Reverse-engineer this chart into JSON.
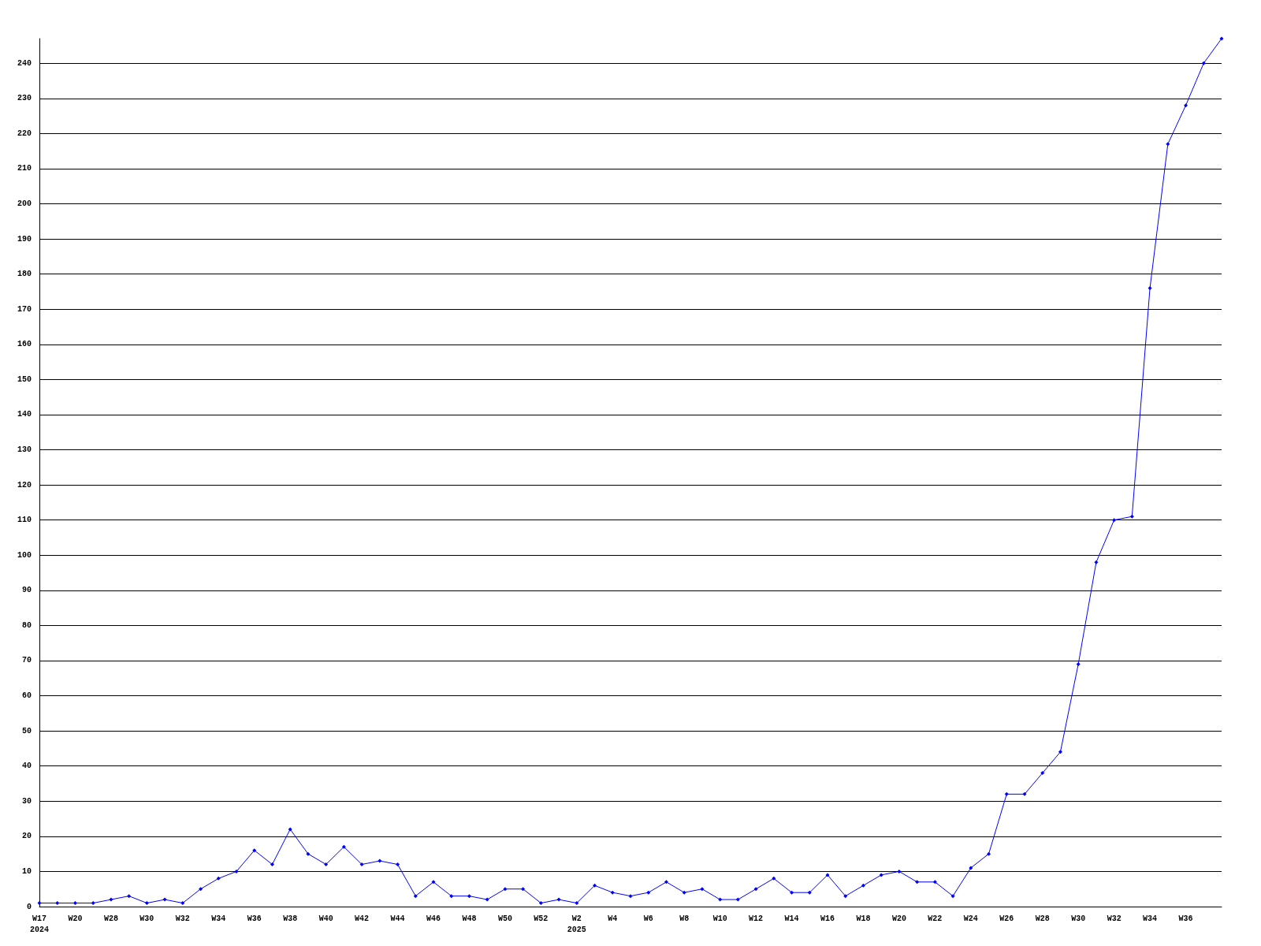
{
  "chart_data": {
    "type": "line",
    "categories": [
      "W17\n2024",
      null,
      "W20",
      null,
      "W28",
      null,
      "W30",
      null,
      "W32",
      null,
      "W34",
      null,
      "W36",
      null,
      "W38",
      null,
      "W40",
      null,
      "W42",
      null,
      "W44",
      null,
      "W46",
      null,
      "W48",
      null,
      "W50",
      null,
      "W52",
      null,
      "W2\n2025",
      null,
      "W4",
      null,
      "W6",
      null,
      "W8",
      null,
      "W10",
      null,
      "W12",
      null,
      "W14",
      null,
      "W16",
      null,
      "W18",
      null,
      "W20",
      null,
      "W22",
      null,
      "W24",
      null,
      "W26",
      null,
      "W28",
      null,
      "W30",
      null,
      "W32",
      null,
      "W34",
      null,
      "W36",
      null,
      null
    ],
    "series": [
      {
        "color": "#0000ff",
        "values": [
          1,
          1,
          1,
          1,
          2,
          3,
          1,
          2,
          1,
          5,
          8,
          10,
          16,
          12,
          22,
          15,
          12,
          17,
          12,
          13,
          12,
          3,
          7,
          3,
          3,
          2,
          5,
          5,
          1,
          2,
          1,
          6,
          4,
          3,
          4,
          7,
          4,
          5,
          2,
          2,
          5,
          8,
          4,
          4,
          9,
          3,
          6,
          9,
          10,
          7,
          7,
          3,
          11,
          15,
          32,
          32,
          38,
          44,
          69,
          98,
          110,
          111,
          176,
          217,
          228,
          240,
          247
        ]
      }
    ],
    "ylim": [
      0,
      247
    ],
    "yticks": [
      0,
      10,
      20,
      30,
      40,
      50,
      60,
      70,
      80,
      90,
      100,
      110,
      120,
      130,
      140,
      150,
      160,
      170,
      180,
      190,
      200,
      210,
      220,
      230,
      240
    ],
    "grid": "y",
    "marker": "diamond",
    "line_style": "solid"
  }
}
